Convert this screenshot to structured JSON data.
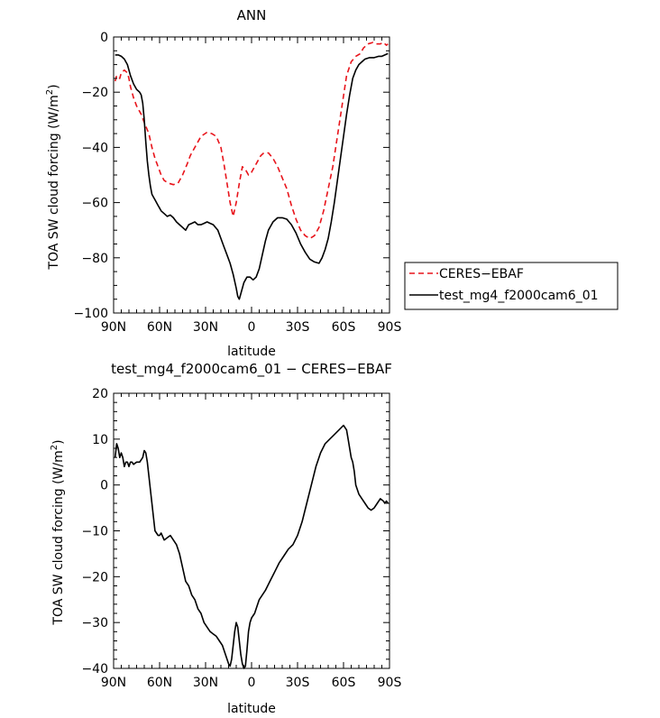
{
  "colors": {
    "ceres": "#e8141b",
    "model": "#000000",
    "axis": "#000000"
  },
  "chart_data": [
    {
      "type": "line",
      "title": "ANN",
      "xlabel": "latitude",
      "ylabel_main": "TOA SW cloud forcing (W/m",
      "ylabel_sup": "2",
      "ylabel_close": ")",
      "xlim": [
        90,
        -90
      ],
      "ylim": [
        -100,
        0
      ],
      "xticks": [
        {
          "v": 90,
          "label": "90N"
        },
        {
          "v": 60,
          "label": "60N"
        },
        {
          "v": 30,
          "label": "30N"
        },
        {
          "v": 0,
          "label": "0"
        },
        {
          "v": -30,
          "label": "30S"
        },
        {
          "v": -60,
          "label": "60S"
        },
        {
          "v": -90,
          "label": "90S"
        }
      ],
      "yticks": [
        {
          "v": 0,
          "label": "0"
        },
        {
          "v": -20,
          "label": "−20"
        },
        {
          "v": -40,
          "label": "−40"
        },
        {
          "v": -60,
          "label": "−60"
        },
        {
          "v": -80,
          "label": "−80"
        },
        {
          "v": -100,
          "label": "−100"
        }
      ],
      "legend": [
        "CERES−EBAF",
        "test_mg4_f2000cam6_01"
      ],
      "series": [
        {
          "name": "CERES−EBAF",
          "style": "dashed",
          "x": [
            89,
            88,
            86,
            85,
            83,
            81,
            80,
            79,
            77,
            75,
            72,
            70,
            67,
            65,
            63,
            61,
            59,
            57,
            54,
            51,
            48,
            45,
            42,
            40,
            37,
            33,
            29,
            26,
            23,
            20,
            18,
            16,
            14,
            12,
            10,
            8,
            6,
            4,
            2,
            0,
            -2,
            -4,
            -6,
            -8,
            -11,
            -14,
            -17,
            -20,
            -23,
            -26,
            -29,
            -32,
            -35,
            -38,
            -41,
            -44,
            -47,
            -50,
            -53,
            -56,
            -59,
            -62,
            -65,
            -68,
            -71,
            -73,
            -76,
            -79,
            -81,
            -84,
            -86,
            -88,
            -89
          ],
          "values": [
            -16,
            -14,
            -15,
            -13,
            -12,
            -13,
            -15,
            -18,
            -22,
            -25,
            -28,
            -31,
            -35,
            -40,
            -44,
            -47,
            -50,
            -52,
            -53,
            -53.5,
            -53,
            -50,
            -46,
            -43,
            -40,
            -36,
            -34.5,
            -35,
            -36,
            -40,
            -46,
            -53,
            -60,
            -65,
            -60,
            -53,
            -47,
            -48,
            -50,
            -49,
            -47,
            -45,
            -43,
            -42,
            -42,
            -44,
            -47,
            -51,
            -55,
            -61,
            -66,
            -70,
            -72,
            -73,
            -72,
            -69,
            -63,
            -55,
            -47,
            -36,
            -25,
            -14,
            -9,
            -7,
            -6,
            -4,
            -2.5,
            -2,
            -2.5,
            -2.5,
            -2,
            -3,
            -2.5
          ]
        },
        {
          "name": "test_mg4_f2000cam6_01",
          "style": "solid",
          "x": [
            89,
            87,
            85,
            83,
            81,
            80,
            79,
            77,
            75,
            73,
            72,
            71,
            70,
            69,
            68,
            67,
            66,
            65,
            64,
            63,
            62,
            61,
            60,
            59,
            57,
            55,
            53,
            51,
            49,
            47,
            45,
            43,
            41,
            39,
            37,
            35,
            33,
            31,
            29,
            27,
            25,
            22,
            20,
            18,
            16,
            14,
            12,
            10,
            9,
            8,
            7,
            5,
            3,
            1,
            -1,
            -3,
            -5,
            -7,
            -9,
            -11,
            -14,
            -17,
            -20,
            -23,
            -26,
            -29,
            -32,
            -35,
            -38,
            -41,
            -44,
            -46,
            -48,
            -50,
            -52,
            -54,
            -56,
            -58,
            -60,
            -62,
            -64,
            -66,
            -68,
            -70,
            -72,
            -74,
            -77,
            -80,
            -83,
            -85,
            -87,
            -89
          ],
          "values": [
            -6.5,
            -6.5,
            -7,
            -8,
            -10,
            -12,
            -14,
            -17,
            -19,
            -20,
            -21,
            -24,
            -30,
            -38,
            -45,
            -50,
            -54,
            -57,
            -58,
            -59,
            -60,
            -61,
            -62,
            -63,
            -64,
            -65,
            -64.5,
            -65.5,
            -67,
            -68,
            -69,
            -70,
            -68,
            -67.5,
            -67,
            -68,
            -68,
            -67.5,
            -67,
            -67.5,
            -68,
            -70,
            -73,
            -76,
            -79,
            -82,
            -86,
            -91,
            -94,
            -95,
            -93,
            -89,
            -87,
            -87,
            -88,
            -87,
            -84,
            -79,
            -74,
            -70,
            -67,
            -65.5,
            -65.5,
            -66,
            -68,
            -71,
            -75,
            -78,
            -80.5,
            -81.5,
            -82,
            -80,
            -77,
            -73,
            -67,
            -60,
            -52,
            -44,
            -36,
            -28,
            -21,
            -15,
            -12,
            -10,
            -9,
            -8,
            -7.5,
            -7.5,
            -7,
            -7,
            -6.5,
            -6
          ]
        }
      ]
    },
    {
      "type": "line",
      "title": "test_mg4_f2000cam6_01 − CERES−EBAF",
      "xlabel": "latitude",
      "ylabel_main": "TOA SW cloud forcing (W/m",
      "ylabel_sup": "2",
      "ylabel_close": ")",
      "xlim": [
        90,
        -90
      ],
      "ylim": [
        -40,
        20
      ],
      "xticks": [
        {
          "v": 90,
          "label": "90N"
        },
        {
          "v": 60,
          "label": "60N"
        },
        {
          "v": 30,
          "label": "30N"
        },
        {
          "v": 0,
          "label": "0"
        },
        {
          "v": -30,
          "label": "30S"
        },
        {
          "v": -60,
          "label": "60S"
        },
        {
          "v": -90,
          "label": "90S"
        }
      ],
      "yticks": [
        {
          "v": 20,
          "label": "20"
        },
        {
          "v": 10,
          "label": "10"
        },
        {
          "v": 0,
          "label": "0"
        },
        {
          "v": -10,
          "label": "−10"
        },
        {
          "v": -20,
          "label": "−20"
        },
        {
          "v": -30,
          "label": "−30"
        },
        {
          "v": -40,
          "label": "−40"
        }
      ],
      "series": [
        {
          "name": "test_mg4_f2000cam6_01 − CERES−EBAF",
          "style": "solid",
          "x": [
            89,
            88,
            87,
            86,
            85,
            84,
            83,
            82,
            81,
            80,
            79,
            78,
            77,
            75,
            73,
            71,
            70,
            69,
            68,
            67,
            66,
            65,
            64,
            63,
            62,
            61,
            60,
            59,
            57,
            55,
            53,
            51,
            49,
            47,
            45,
            43,
            41,
            39,
            37,
            35,
            33,
            31,
            29,
            27,
            25,
            23,
            21,
            19,
            17,
            15,
            14,
            13,
            12,
            11,
            10,
            9,
            8,
            7,
            6,
            5,
            4,
            3,
            2,
            1,
            0,
            -1,
            -2,
            -3,
            -5,
            -7,
            -9,
            -12,
            -15,
            -18,
            -21,
            -24,
            -27,
            -30,
            -33,
            -36,
            -39,
            -42,
            -45,
            -48,
            -51,
            -54,
            -57,
            -60,
            -62,
            -63,
            -64,
            -65,
            -66,
            -67,
            -68,
            -70,
            -72,
            -74,
            -76,
            -78,
            -80,
            -82,
            -84,
            -86,
            -87,
            -88,
            -89
          ],
          "values": [
            6,
            9,
            8,
            6,
            7,
            6,
            4,
            5,
            5,
            4,
            5,
            5,
            4.5,
            5,
            5,
            6,
            7.5,
            7,
            5,
            2,
            -1,
            -4,
            -7,
            -10,
            -10.5,
            -11,
            -11,
            -10.5,
            -12,
            -11.5,
            -11,
            -12,
            -13,
            -15,
            -18,
            -21,
            -22,
            -24,
            -25,
            -27,
            -28,
            -30,
            -31,
            -32,
            -32.5,
            -33,
            -34,
            -35,
            -37,
            -39,
            -39.5,
            -38,
            -35,
            -32,
            -30,
            -31,
            -34,
            -37,
            -39,
            -40,
            -39.5,
            -36,
            -32,
            -30,
            -29,
            -28.5,
            -28,
            -27,
            -25,
            -24,
            -23,
            -21,
            -19,
            -17,
            -15.5,
            -14,
            -13,
            -11,
            -8,
            -4,
            0,
            4,
            7,
            9,
            10,
            11,
            12,
            13,
            12,
            10,
            8,
            6,
            5,
            3,
            0,
            -2,
            -3,
            -4,
            -5,
            -5.5,
            -5,
            -4,
            -3,
            -3.5,
            -4,
            -3.5,
            -4
          ]
        }
      ]
    }
  ]
}
